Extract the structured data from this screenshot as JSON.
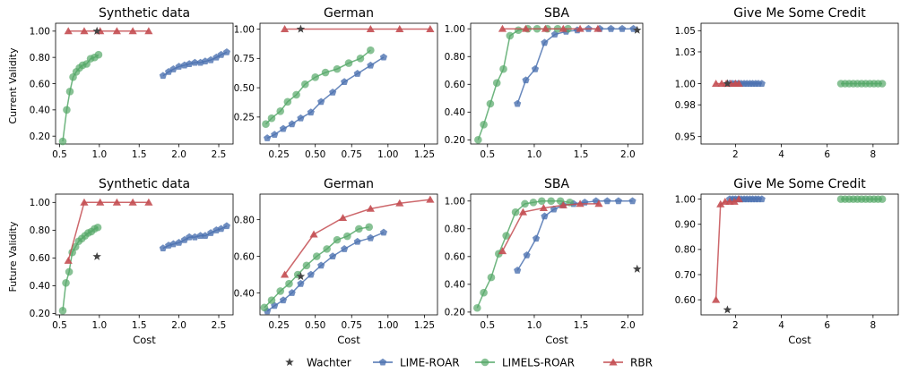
{
  "figure": {
    "row_ylabels": [
      "Current Validity",
      "Future Validity"
    ],
    "xlabel": "Cost"
  },
  "legend": [
    {
      "label": "Wachter",
      "color": "#444444",
      "marker": "star"
    },
    {
      "label": "LIME-ROAR",
      "color": "#4c72b0",
      "marker": "pentagon"
    },
    {
      "label": "LIMELS-ROAR",
      "color": "#55a868",
      "marker": "circle"
    },
    {
      "label": "RBR",
      "color": "#c44e52",
      "marker": "triangle"
    }
  ],
  "chart_data": [
    {
      "type": "line",
      "title": "Synthetic data",
      "xlabel": "",
      "ylabel": "Current Validity",
      "xlim": [
        0.45,
        2.68
      ],
      "ylim": [
        0.14,
        1.06
      ],
      "xticks": [
        0.5,
        1.0,
        1.5,
        2.0,
        2.5
      ],
      "xtick_labels": [
        "0.5",
        "1.0",
        "1.5",
        "2.0",
        "2.5"
      ],
      "yticks": [
        0.2,
        0.4,
        0.6,
        0.8,
        1.0
      ],
      "ytick_labels": [
        "0.20",
        "0.40",
        "0.60",
        "0.80",
        "1.00"
      ],
      "series": [
        {
          "name": "Wachter",
          "x": [
            0.97
          ],
          "y": [
            1.0
          ]
        },
        {
          "name": "LIME-ROAR",
          "x": [
            1.8,
            1.87,
            1.93,
            2.0,
            2.07,
            2.13,
            2.2,
            2.27,
            2.33,
            2.4,
            2.47,
            2.53,
            2.6
          ],
          "y": [
            0.66,
            0.69,
            0.71,
            0.73,
            0.74,
            0.75,
            0.76,
            0.76,
            0.77,
            0.78,
            0.8,
            0.82,
            0.84
          ]
        },
        {
          "name": "LIMELS-ROAR",
          "x": [
            0.54,
            0.59,
            0.63,
            0.67,
            0.71,
            0.75,
            0.79,
            0.84,
            0.89,
            0.94,
            0.99
          ],
          "y": [
            0.16,
            0.4,
            0.54,
            0.65,
            0.69,
            0.72,
            0.74,
            0.75,
            0.79,
            0.8,
            0.82
          ]
        },
        {
          "name": "RBR",
          "x": [
            0.61,
            0.81,
            1.01,
            1.22,
            1.42,
            1.62
          ],
          "y": [
            1.0,
            1.0,
            1.0,
            1.0,
            1.0,
            1.0
          ]
        }
      ]
    },
    {
      "type": "line",
      "title": "German",
      "xlabel": "",
      "ylabel": "",
      "xlim": [
        0.12,
        1.34
      ],
      "ylim": [
        0.02,
        1.05
      ],
      "xticks": [
        0.25,
        0.5,
        0.75,
        1.0,
        1.25
      ],
      "xtick_labels": [
        "0.25",
        "0.50",
        "0.75",
        "1.00",
        "1.25"
      ],
      "yticks": [
        0.25,
        0.5,
        0.75,
        1.0
      ],
      "ytick_labels": [
        "0.25",
        "0.50",
        "0.75",
        "1.00"
      ],
      "series": [
        {
          "name": "Wachter",
          "x": [
            0.4
          ],
          "y": [
            1.0
          ]
        },
        {
          "name": "LIME-ROAR",
          "x": [
            0.17,
            0.22,
            0.28,
            0.34,
            0.4,
            0.47,
            0.54,
            0.62,
            0.7,
            0.79,
            0.88,
            0.97
          ],
          "y": [
            0.07,
            0.1,
            0.15,
            0.19,
            0.24,
            0.29,
            0.38,
            0.46,
            0.55,
            0.62,
            0.69,
            0.76
          ]
        },
        {
          "name": "LIMELS-ROAR",
          "x": [
            0.16,
            0.2,
            0.26,
            0.31,
            0.37,
            0.43,
            0.5,
            0.57,
            0.65,
            0.73,
            0.81,
            0.88
          ],
          "y": [
            0.19,
            0.24,
            0.3,
            0.38,
            0.44,
            0.53,
            0.59,
            0.63,
            0.66,
            0.71,
            0.75,
            0.82
          ]
        },
        {
          "name": "RBR",
          "x": [
            0.29,
            0.88,
            1.08,
            1.29
          ],
          "y": [
            1.0,
            1.0,
            1.0,
            1.0
          ]
        }
      ]
    },
    {
      "type": "line",
      "title": "SBA",
      "xlabel": "",
      "ylabel": "",
      "xlim": [
        0.32,
        2.16
      ],
      "ylim": [
        0.17,
        1.04
      ],
      "xticks": [
        0.5,
        1.0,
        1.5,
        2.0
      ],
      "xtick_labels": [
        "0.5",
        "1.0",
        "1.5",
        "2.0"
      ],
      "yticks": [
        0.2,
        0.4,
        0.6,
        0.8,
        1.0
      ],
      "ytick_labels": [
        "0.20",
        "0.40",
        "0.60",
        "0.80",
        "1.00"
      ],
      "series": [
        {
          "name": "Wachter",
          "x": [
            2.1
          ],
          "y": [
            0.99
          ]
        },
        {
          "name": "LIME-ROAR",
          "x": [
            0.82,
            0.91,
            1.01,
            1.11,
            1.22,
            1.34,
            1.46,
            1.58,
            1.7,
            1.82,
            1.94,
            2.06
          ],
          "y": [
            0.46,
            0.63,
            0.71,
            0.9,
            0.96,
            0.98,
            0.99,
            1.0,
            1.0,
            1.0,
            1.0,
            1.0
          ]
        },
        {
          "name": "LIMELS-ROAR",
          "x": [
            0.4,
            0.46,
            0.53,
            0.6,
            0.67,
            0.74,
            0.83,
            0.93,
            1.03,
            1.14,
            1.25,
            1.36
          ],
          "y": [
            0.2,
            0.31,
            0.46,
            0.61,
            0.71,
            0.95,
            0.99,
            1.0,
            1.0,
            1.0,
            1.0,
            1.0
          ]
        },
        {
          "name": "RBR",
          "x": [
            0.66,
            0.91,
            1.12,
            1.31,
            1.49,
            1.68
          ],
          "y": [
            1.0,
            1.0,
            1.0,
            1.0,
            1.0,
            1.0
          ]
        }
      ]
    },
    {
      "type": "line",
      "title": "Give Me Some Credit",
      "xlabel": "",
      "ylabel": "",
      "xlim": [
        0.5,
        9.1
      ],
      "ylim": [
        0.943,
        1.057
      ],
      "xticks": [
        2,
        4,
        6,
        8
      ],
      "xtick_labels": [
        "2",
        "4",
        "6",
        "8"
      ],
      "yticks": [
        0.95,
        0.98,
        1.0,
        1.03,
        1.05
      ],
      "ytick_labels": [
        "0.95",
        "0.98",
        "1.00",
        "1.03",
        "1.05"
      ],
      "series": [
        {
          "name": "Wachter",
          "x": [
            1.65
          ],
          "y": [
            1.0
          ]
        },
        {
          "name": "LIME-ROAR",
          "x": [
            1.75,
            1.88,
            2.0,
            2.13,
            2.25,
            2.38,
            2.5,
            2.63,
            2.75,
            2.88,
            3.0,
            3.15
          ],
          "y": [
            1.0,
            1.0,
            1.0,
            1.0,
            1.0,
            1.0,
            1.0,
            1.0,
            1.0,
            1.0,
            1.0,
            1.0
          ]
        },
        {
          "name": "LIMELS-ROAR",
          "x": [
            6.6,
            6.78,
            6.96,
            7.14,
            7.32,
            7.5,
            7.68,
            7.86,
            8.04,
            8.22,
            8.4
          ],
          "y": [
            1.0,
            1.0,
            1.0,
            1.0,
            1.0,
            1.0,
            1.0,
            1.0,
            1.0,
            1.0,
            1.0
          ]
        },
        {
          "name": "RBR",
          "x": [
            1.15,
            1.4,
            1.6,
            1.8,
            2.0,
            2.15
          ],
          "y": [
            1.0,
            1.0,
            1.0,
            1.0,
            1.0,
            1.0
          ]
        }
      ]
    },
    {
      "type": "line",
      "title": "Synthetic data",
      "xlabel": "Cost",
      "ylabel": "Future Validity",
      "xlim": [
        0.45,
        2.68
      ],
      "ylim": [
        0.19,
        1.06
      ],
      "xticks": [
        0.5,
        1.0,
        1.5,
        2.0,
        2.5
      ],
      "xtick_labels": [
        "0.5",
        "1.0",
        "1.5",
        "2.0",
        "2.5"
      ],
      "yticks": [
        0.2,
        0.4,
        0.6,
        0.8,
        1.0
      ],
      "ytick_labels": [
        "0.20",
        "0.40",
        "0.60",
        "0.80",
        "1.00"
      ],
      "series": [
        {
          "name": "Wachter",
          "x": [
            0.97
          ],
          "y": [
            0.61
          ]
        },
        {
          "name": "LIME-ROAR",
          "x": [
            1.8,
            1.87,
            1.93,
            2.0,
            2.07,
            2.13,
            2.2,
            2.27,
            2.33,
            2.4,
            2.47,
            2.53,
            2.6
          ],
          "y": [
            0.67,
            0.69,
            0.7,
            0.71,
            0.73,
            0.75,
            0.75,
            0.76,
            0.76,
            0.78,
            0.8,
            0.81,
            0.83
          ]
        },
        {
          "name": "LIMELS-ROAR",
          "x": [
            0.54,
            0.58,
            0.62,
            0.66,
            0.7,
            0.74,
            0.78,
            0.82,
            0.86,
            0.9,
            0.94,
            0.98
          ],
          "y": [
            0.22,
            0.42,
            0.5,
            0.64,
            0.68,
            0.72,
            0.74,
            0.76,
            0.78,
            0.79,
            0.81,
            0.82
          ]
        },
        {
          "name": "RBR",
          "x": [
            0.61,
            0.81,
            1.01,
            1.22,
            1.42,
            1.62
          ],
          "y": [
            0.58,
            1.0,
            1.0,
            1.0,
            1.0,
            1.0
          ]
        }
      ]
    },
    {
      "type": "line",
      "title": "German",
      "xlabel": "Cost",
      "ylabel": "",
      "xlim": [
        0.12,
        1.34
      ],
      "ylim": [
        0.28,
        0.94
      ],
      "xticks": [
        0.25,
        0.5,
        0.75,
        1.0,
        1.25
      ],
      "xtick_labels": [
        "0.25",
        "0.50",
        "0.75",
        "1.00",
        "1.25"
      ],
      "yticks": [
        0.4,
        0.6,
        0.8
      ],
      "ytick_labels": [
        "0.40",
        "0.60",
        "0.80"
      ],
      "series": [
        {
          "name": "Wachter",
          "x": [
            0.4
          ],
          "y": [
            0.49
          ]
        },
        {
          "name": "LIME-ROAR",
          "x": [
            0.17,
            0.22,
            0.28,
            0.34,
            0.4,
            0.47,
            0.54,
            0.62,
            0.7,
            0.79,
            0.88,
            0.97
          ],
          "y": [
            0.3,
            0.33,
            0.36,
            0.4,
            0.45,
            0.5,
            0.55,
            0.6,
            0.64,
            0.68,
            0.7,
            0.73
          ]
        },
        {
          "name": "LIMELS-ROAR",
          "x": [
            0.15,
            0.2,
            0.26,
            0.32,
            0.38,
            0.44,
            0.51,
            0.58,
            0.65,
            0.72,
            0.8,
            0.87
          ],
          "y": [
            0.32,
            0.36,
            0.41,
            0.45,
            0.5,
            0.55,
            0.6,
            0.64,
            0.69,
            0.71,
            0.75,
            0.76
          ]
        },
        {
          "name": "RBR",
          "x": [
            0.29,
            0.49,
            0.69,
            0.88,
            1.08,
            1.29
          ],
          "y": [
            0.5,
            0.72,
            0.81,
            0.86,
            0.89,
            0.91
          ]
        }
      ]
    },
    {
      "type": "line",
      "title": "SBA",
      "xlabel": "Cost",
      "ylabel": "",
      "xlim": [
        0.32,
        2.16
      ],
      "ylim": [
        0.18,
        1.05
      ],
      "xticks": [
        0.5,
        1.0,
        1.5,
        2.0
      ],
      "xtick_labels": [
        "0.5",
        "1.0",
        "1.5",
        "2.0"
      ],
      "yticks": [
        0.2,
        0.4,
        0.6,
        0.8,
        1.0
      ],
      "ytick_labels": [
        "0.20",
        "0.40",
        "0.60",
        "0.80",
        "1.00"
      ],
      "series": [
        {
          "name": "Wachter",
          "x": [
            2.1
          ],
          "y": [
            0.51
          ]
        },
        {
          "name": "LIME-ROAR",
          "x": [
            0.82,
            0.92,
            1.02,
            1.11,
            1.21,
            1.31,
            1.42,
            1.54,
            1.66,
            1.78,
            1.9,
            2.05
          ],
          "y": [
            0.5,
            0.61,
            0.73,
            0.89,
            0.94,
            0.97,
            0.98,
            0.99,
            1.0,
            1.0,
            1.0,
            1.0
          ]
        },
        {
          "name": "LIMELS-ROAR",
          "x": [
            0.39,
            0.46,
            0.54,
            0.62,
            0.7,
            0.8,
            0.9,
            0.99,
            1.08,
            1.18,
            1.28,
            1.38
          ],
          "y": [
            0.23,
            0.34,
            0.45,
            0.62,
            0.75,
            0.92,
            0.98,
            0.99,
            1.0,
            1.0,
            1.0,
            0.99
          ]
        },
        {
          "name": "RBR",
          "x": [
            0.66,
            0.88,
            1.1,
            1.31,
            1.49,
            1.69
          ],
          "y": [
            0.64,
            0.92,
            0.95,
            0.97,
            0.98,
            0.98
          ]
        }
      ]
    },
    {
      "type": "line",
      "title": "Give Me Some Credit",
      "xlabel": "Cost",
      "ylabel": "",
      "xlim": [
        0.5,
        9.1
      ],
      "ylim": [
        0.54,
        1.02
      ],
      "xticks": [
        2,
        4,
        6,
        8
      ],
      "xtick_labels": [
        "2",
        "4",
        "6",
        "8"
      ],
      "yticks": [
        0.6,
        0.7,
        0.8,
        0.9,
        1.0
      ],
      "ytick_labels": [
        "0.60",
        "0.70",
        "0.80",
        "0.90",
        "1.00"
      ],
      "series": [
        {
          "name": "Wachter",
          "x": [
            1.65
          ],
          "y": [
            0.56
          ]
        },
        {
          "name": "LIME-ROAR",
          "x": [
            1.75,
            1.88,
            2.0,
            2.13,
            2.25,
            2.38,
            2.5,
            2.63,
            2.75,
            2.88,
            3.0,
            3.15
          ],
          "y": [
            1.0,
            1.0,
            1.0,
            1.0,
            1.0,
            1.0,
            1.0,
            1.0,
            1.0,
            1.0,
            1.0,
            1.0
          ]
        },
        {
          "name": "LIMELS-ROAR",
          "x": [
            6.6,
            6.78,
            6.96,
            7.14,
            7.32,
            7.5,
            7.68,
            7.86,
            8.04,
            8.22,
            8.4
          ],
          "y": [
            1.0,
            1.0,
            1.0,
            1.0,
            1.0,
            1.0,
            1.0,
            1.0,
            1.0,
            1.0,
            1.0
          ]
        },
        {
          "name": "RBR",
          "x": [
            1.15,
            1.35,
            1.55,
            1.75,
            1.95,
            2.15
          ],
          "y": [
            0.6,
            0.98,
            0.99,
            0.99,
            0.99,
            1.0
          ]
        }
      ]
    }
  ]
}
